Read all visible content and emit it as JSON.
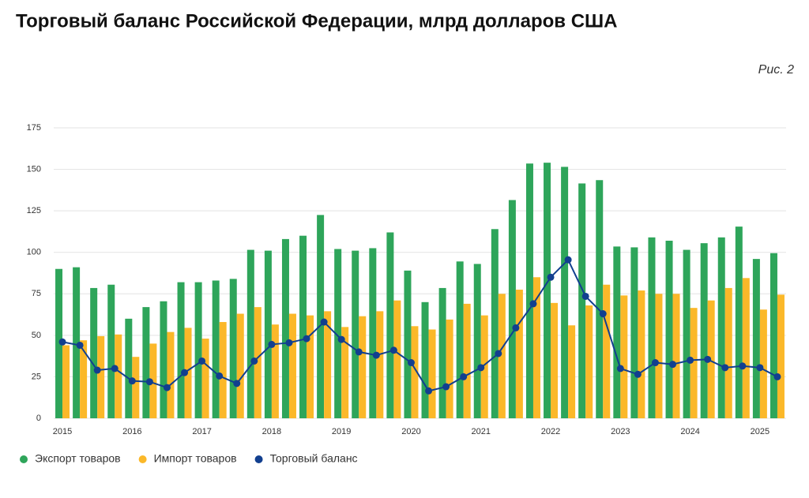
{
  "chart_data": {
    "type": "bar-line",
    "title": "Торговый баланс Российской Федерации, млрд долларов США",
    "annotation": "Рис. 2",
    "categories": [
      "2015",
      null,
      null,
      null,
      "2016",
      null,
      null,
      null,
      "2017",
      null,
      null,
      null,
      "2018",
      null,
      null,
      null,
      "2019",
      null,
      null,
      null,
      "2020",
      null,
      null,
      null,
      "2021",
      null,
      null,
      null,
      "2022",
      null,
      null,
      null,
      "2023",
      null,
      null,
      null,
      "2024",
      null,
      null,
      null,
      "2025",
      null
    ],
    "series": [
      {
        "name": "Экспорт товаров",
        "color": "#2ea55a",
        "kind": "bar",
        "values": [
          90,
          91,
          78.5,
          80.5,
          60,
          67,
          70.5,
          82,
          82,
          83,
          84,
          101.5,
          101,
          108,
          110,
          122.5,
          102,
          101,
          102.5,
          112,
          89,
          70,
          78.5,
          94.5,
          93,
          114,
          131.5,
          153.5,
          154,
          151.5,
          141.5,
          143.5,
          103.5,
          103,
          109,
          107,
          101.5,
          105.5,
          109,
          115.5,
          96,
          99.5
        ]
      },
      {
        "name": "Импорт товаров",
        "color": "#fbb829",
        "kind": "bar",
        "values": [
          44,
          47,
          49.5,
          50.5,
          37,
          45,
          52,
          54.5,
          48,
          58,
          63,
          67,
          56.5,
          63,
          62,
          64.5,
          55,
          61.5,
          64.5,
          71,
          55.5,
          53.5,
          59.5,
          69,
          62,
          75,
          77.5,
          85,
          69.5,
          56,
          68,
          80.5,
          74,
          77,
          75,
          75,
          66.5,
          71,
          78.5,
          84.5,
          65.5,
          74.5
        ]
      },
      {
        "name": "Торговый баланс",
        "color": "#123f8f",
        "kind": "line",
        "values": [
          46,
          44,
          29,
          30,
          22.5,
          22,
          18.5,
          27.5,
          34.5,
          25.5,
          21,
          34.5,
          44.5,
          45.5,
          48,
          58,
          47.5,
          40,
          38,
          41,
          33.5,
          16.5,
          19,
          25,
          30.5,
          39,
          54.5,
          69,
          85,
          95.5,
          73.5,
          63,
          30,
          26.5,
          33.5,
          32.5,
          35,
          35.5,
          30.5,
          31.5,
          30.5,
          25
        ]
      }
    ],
    "ylim": [
      0,
      175
    ],
    "yticks": [
      0,
      25,
      50,
      75,
      100,
      125,
      150,
      175
    ],
    "grid": true,
    "legend": "bottom"
  }
}
